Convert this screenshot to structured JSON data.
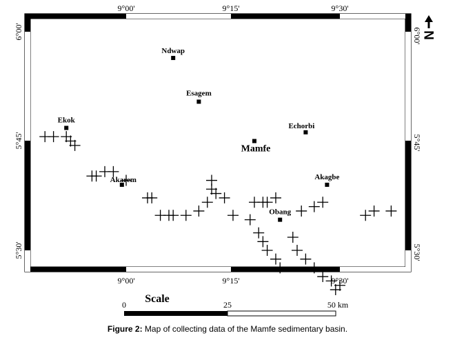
{
  "frame": {
    "top_ticks": [
      "9°00'",
      "9°15'",
      "9°30'"
    ],
    "bottom_ticks": [
      "9°00'",
      "9°15'",
      "9°30'"
    ],
    "left_ticks": [
      "6°00'",
      "5°45'",
      "5°30'"
    ],
    "right_ticks": [
      "6°00'",
      "5°45'",
      "5°30'"
    ]
  },
  "north_arrow": {
    "letter": "N",
    "icon": "north-arrow-icon"
  },
  "towns": [
    {
      "name": "Ndwap",
      "lon": 9.11,
      "lat": 5.94
    },
    {
      "name": "Esagem",
      "lon": 9.17,
      "lat": 5.84
    },
    {
      "name": "Ekok",
      "lon": 8.86,
      "lat": 5.78
    },
    {
      "name": "Echorbi",
      "lon": 9.42,
      "lat": 5.77
    },
    {
      "name": "Mamfe",
      "lon": 9.3,
      "lat": 5.75
    },
    {
      "name": "Akarem",
      "lon": 8.99,
      "lat": 5.65
    },
    {
      "name": "Akagbe",
      "lon": 9.47,
      "lat": 5.65
    },
    {
      "name": "Obang",
      "lon": 9.36,
      "lat": 5.57
    }
  ],
  "stations": [
    [
      8.81,
      5.76
    ],
    [
      8.83,
      5.76
    ],
    [
      8.86,
      5.76
    ],
    [
      8.87,
      5.75
    ],
    [
      8.88,
      5.74
    ],
    [
      8.92,
      5.67
    ],
    [
      8.93,
      5.67
    ],
    [
      8.95,
      5.68
    ],
    [
      8.97,
      5.68
    ],
    [
      9.0,
      5.66
    ],
    [
      9.05,
      5.62
    ],
    [
      9.06,
      5.62
    ],
    [
      9.08,
      5.58
    ],
    [
      9.1,
      5.58
    ],
    [
      9.11,
      5.58
    ],
    [
      9.14,
      5.58
    ],
    [
      9.17,
      5.59
    ],
    [
      9.19,
      5.61
    ],
    [
      9.2,
      5.64
    ],
    [
      9.2,
      5.66
    ],
    [
      9.21,
      5.63
    ],
    [
      9.23,
      5.62
    ],
    [
      9.25,
      5.58
    ],
    [
      9.3,
      5.61
    ],
    [
      9.32,
      5.61
    ],
    [
      9.33,
      5.61
    ],
    [
      9.35,
      5.62
    ],
    [
      9.29,
      5.57
    ],
    [
      9.31,
      5.54
    ],
    [
      9.32,
      5.52
    ],
    [
      9.33,
      5.5
    ],
    [
      9.35,
      5.48
    ],
    [
      9.36,
      5.46
    ],
    [
      9.41,
      5.59
    ],
    [
      9.44,
      5.6
    ],
    [
      9.46,
      5.61
    ],
    [
      9.39,
      5.53
    ],
    [
      9.4,
      5.5
    ],
    [
      9.42,
      5.48
    ],
    [
      9.44,
      5.46
    ],
    [
      9.46,
      5.44
    ],
    [
      9.48,
      5.43
    ],
    [
      9.5,
      5.42
    ],
    [
      9.49,
      5.41
    ],
    [
      9.56,
      5.58
    ],
    [
      9.58,
      5.59
    ],
    [
      9.62,
      5.59
    ]
  ],
  "scale": {
    "title": "Scale",
    "ticks": [
      "0",
      "25",
      "50 km"
    ],
    "max_km": 50
  },
  "caption": {
    "label": "Figure 2:",
    "text": " Map of collecting data of the Mamfe sedimentary basin."
  }
}
